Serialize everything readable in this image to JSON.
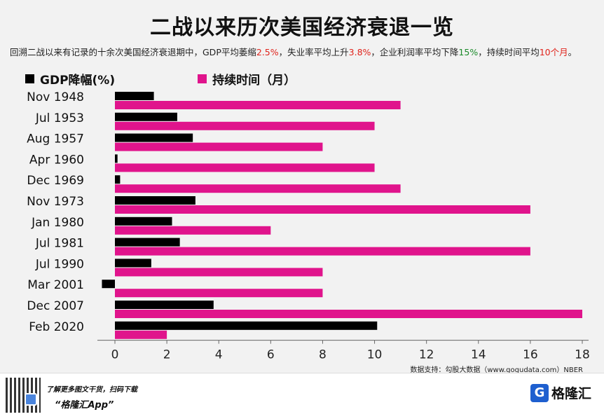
{
  "title": "二战以来历次美国经济衰退一览",
  "subtitle": {
    "part1": "回溯二战以来有记录的十余次美国经济衰退期中，GDP平均萎缩",
    "gdp": "2.5%",
    "part2": "，失业率平均上升",
    "unemp": "3.8%",
    "part3": "，企业利润率平均下降",
    "profit": "15%",
    "part4": "，持续时间平均",
    "duration": "10个月",
    "part5": "。"
  },
  "legend": {
    "gdp_label": "GDP降幅(%)",
    "duration_label": "持续时间（月）"
  },
  "colors": {
    "gdp": "#000000",
    "duration": "#e0148c",
    "axis": "#666666"
  },
  "chart_data": {
    "type": "bar",
    "orientation": "horizontal",
    "categories": [
      "Nov 1948",
      "Jul 1953",
      "Aug 1957",
      "Apr 1960",
      "Dec 1969",
      "Nov 1973",
      "Jan 1980",
      "Jul 1981",
      "Jul 1990",
      "Mar 2001",
      "Dec 2007",
      "Feb 2020"
    ],
    "series": [
      {
        "name": "GDP降幅(%)",
        "values": [
          1.5,
          2.4,
          3.0,
          0.1,
          0.2,
          3.1,
          2.2,
          2.5,
          1.4,
          -0.5,
          3.8,
          10.1
        ]
      },
      {
        "name": "持续时间（月）",
        "values": [
          11,
          10,
          8,
          10,
          11,
          16,
          6,
          16,
          8,
          8,
          18,
          2
        ]
      }
    ],
    "xticks": [
      "0",
      "2",
      "4",
      "6",
      "8",
      "10",
      "12",
      "14",
      "16",
      "18"
    ],
    "xlim": [
      0,
      18
    ],
    "grid": false,
    "legend_position": "top-left"
  },
  "source": "数据支持：勾股大数据（www.gogudata.com）NBER",
  "footer": {
    "promo_line1": "了解更多图文干货，扫码下载",
    "promo_line2": "“格隆汇App”",
    "brand_mark": "G",
    "brand_name": "格隆汇"
  }
}
